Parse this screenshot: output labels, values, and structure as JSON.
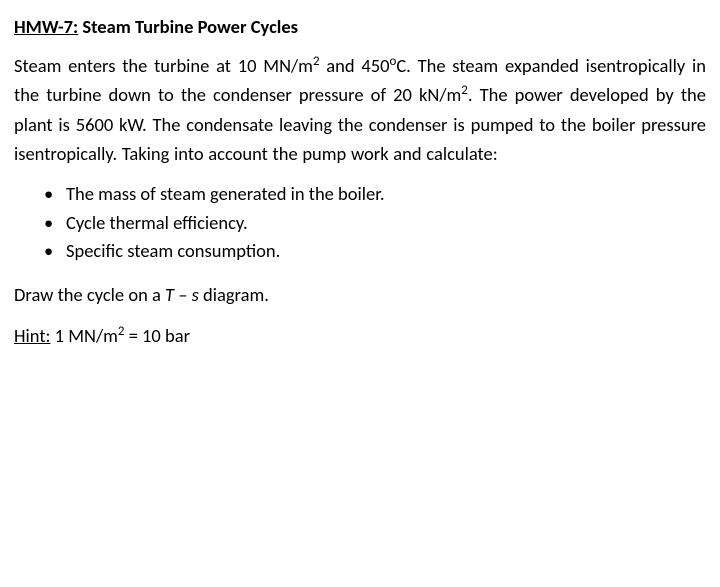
{
  "heading_label": "HMW-7:",
  "heading_title": "Steam Turbine Power Cycles",
  "paragraph_parts": {
    "a": "Steam enters the turbine at 10 MN/m",
    "b": " and 450",
    "deg": "o",
    "c": "C. The steam expanded isentropically in the turbine down to the condenser pressure of 20 kN/m",
    "d": ". The power developed by the plant is 5600 kW. The condensate leaving the condenser is pumped to the boiler pressure isentropically. Taking into account the pump work and calculate:"
  },
  "sup2a": "2",
  "sup2b": "2",
  "bullets": [
    "The mass of steam generated in the boiler.",
    "Cycle thermal efficiency.",
    "Specific steam consumption."
  ],
  "instruction": {
    "pre": "Draw the cycle on a ",
    "var1": "T",
    "dash": " – ",
    "var2": "s",
    "post": " diagram."
  },
  "hint": {
    "label": "Hint:",
    "pre": " 1 MN/m",
    "sup": "2",
    "post": " = 10 bar"
  },
  "bullet_char": "•"
}
